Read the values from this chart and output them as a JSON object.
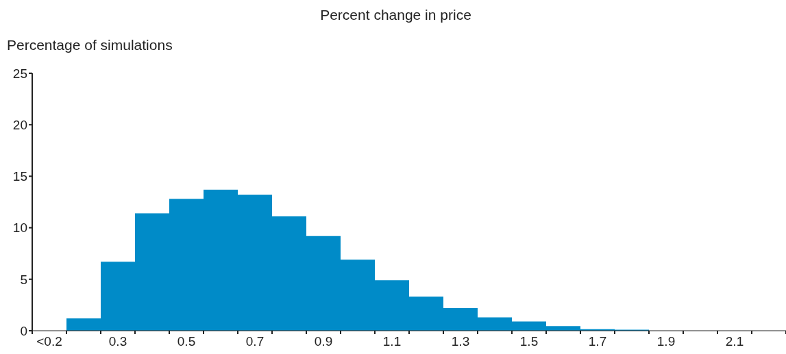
{
  "chart_data": {
    "type": "bar",
    "title": "Percent change in price",
    "ylabel": "Percentage of simulations",
    "categories": [
      "<0.2",
      null,
      "0.3",
      null,
      "0.5",
      null,
      "0.7",
      null,
      "0.9",
      null,
      "1.1",
      null,
      "1.3",
      null,
      "1.5",
      null,
      "1.7",
      null,
      "1.9",
      null,
      "2.1",
      null
    ],
    "values": [
      0,
      1.2,
      6.7,
      11.4,
      12.8,
      13.7,
      13.2,
      11.1,
      9.2,
      6.9,
      4.9,
      3.3,
      2.2,
      1.3,
      0.9,
      0.45,
      0.15,
      0.1,
      0,
      0,
      0,
      0
    ],
    "color": "#008bc8",
    "ylim": [
      0,
      25
    ],
    "yticks": [
      0,
      5,
      10,
      15,
      20,
      25
    ],
    "grid": false,
    "legend": false
  }
}
